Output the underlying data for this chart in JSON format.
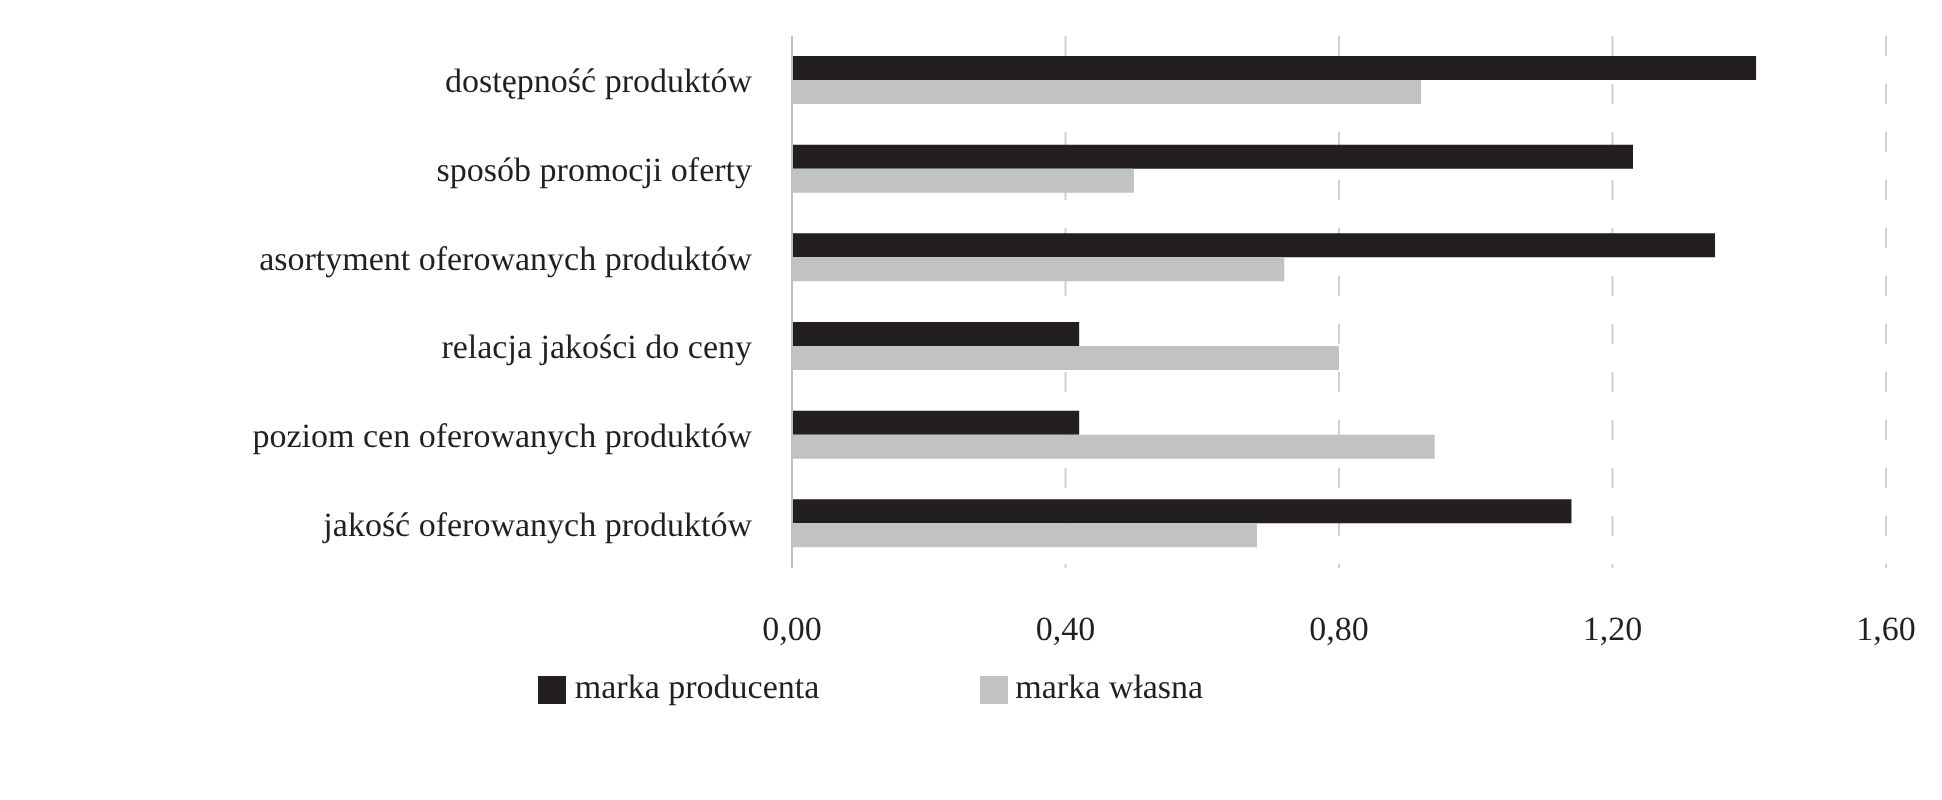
{
  "chart_data": {
    "type": "bar",
    "orientation": "horizontal",
    "categories": [
      "dostępność produktów",
      "sposób promocji oferty",
      "asortyment oferowanych produktów",
      "relacja jakości do ceny",
      "poziom cen oferowanych produktów",
      "jakość oferowanych produktów"
    ],
    "series": [
      {
        "name": "marka producenta",
        "color": "#231f20",
        "values": [
          1.41,
          1.23,
          1.35,
          0.42,
          0.42,
          1.14
        ]
      },
      {
        "name": "marka własna",
        "color": "#c1c2c4",
        "values": [
          0.92,
          0.5,
          0.72,
          0.8,
          0.94,
          0.68
        ]
      }
    ],
    "xlim": [
      0,
      1.6
    ],
    "xticks": [
      {
        "value": 0,
        "label": "0,00"
      },
      {
        "value": 0.4,
        "label": "0,40"
      },
      {
        "value": 0.8,
        "label": "0,80"
      },
      {
        "value": 1.2,
        "label": "1,20"
      },
      {
        "value": 1.6,
        "label": "1,60"
      }
    ],
    "grid": "x",
    "legend": "bottom"
  }
}
